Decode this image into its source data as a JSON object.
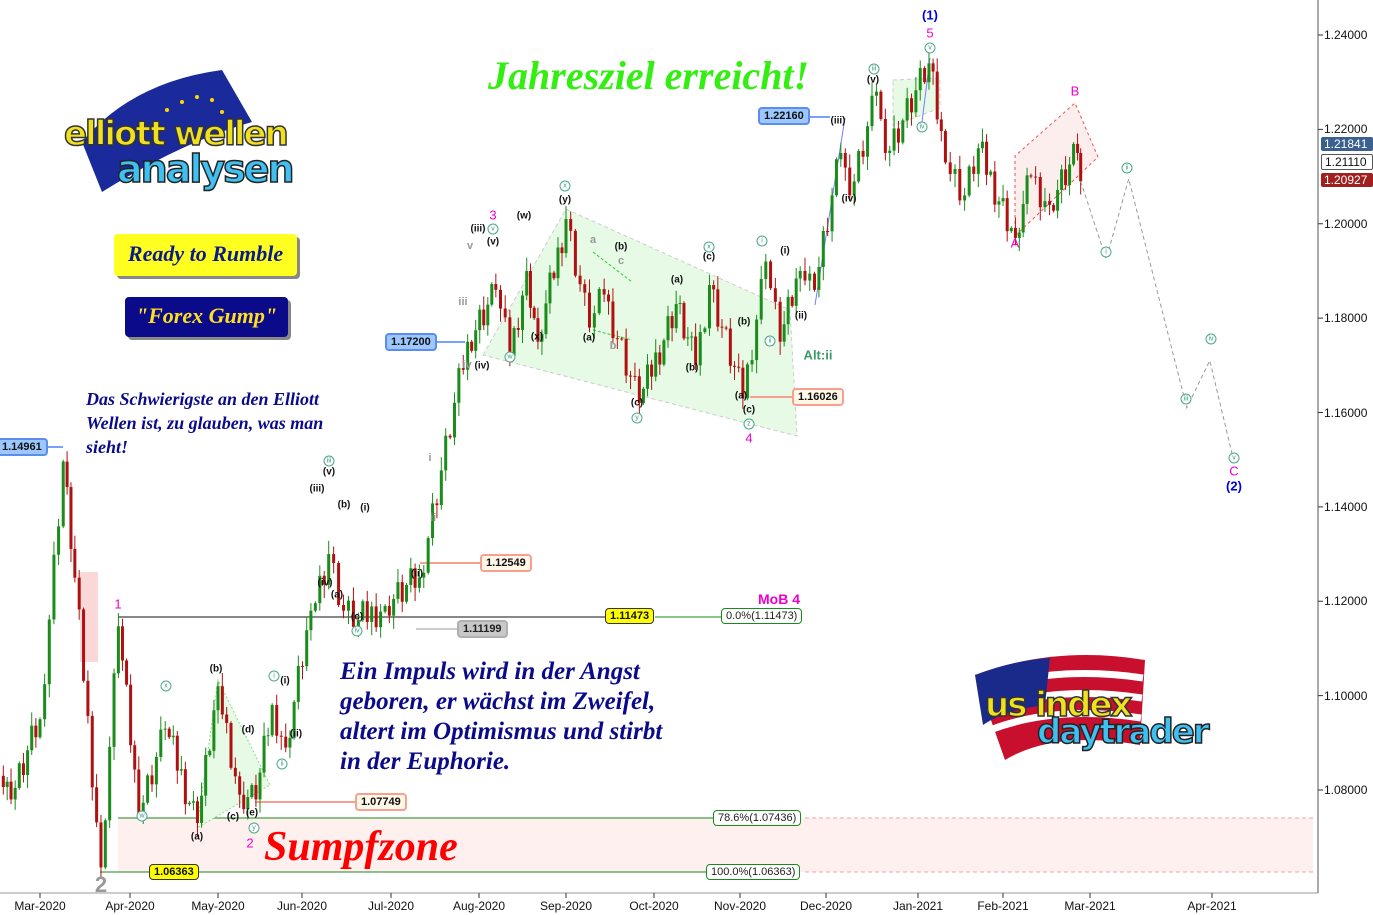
{
  "headline": "Jahresziel erreicht!",
  "badges": {
    "ready": "Ready to Rumble",
    "gump": "\"Forex Gump\""
  },
  "quote_top": [
    "Das Schwierigste an den Elliott",
    "Wellen ist, zu glauben, was man",
    "sieht!"
  ],
  "quote_main": [
    "Ein Impuls wird in der Angst",
    "geboren, er wächst im Zweifel,",
    "altert im Optimismus und stirbt",
    "in der Euphorie."
  ],
  "zone_label": "Sumpfzone",
  "logos": {
    "top_left": [
      "elliott wellen",
      "analysen"
    ],
    "bottom_right": [
      "us index",
      "daytrader"
    ]
  },
  "colors": {
    "up": "#1a8c1a",
    "down": "#b01010",
    "headline": "#33ee11",
    "wave_major": "#ee00cc",
    "wave_cycle": "#0000dd",
    "zone": "#fff0f0",
    "channel": "#e6fae6"
  },
  "chart_data": {
    "type": "candlestick",
    "yaxis": {
      "range": [
        1.0595,
        1.2465
      ],
      "ticks": [
        "1.24000",
        "1.22000",
        "1.20000",
        "1.18000",
        "1.16000",
        "1.14000",
        "1.12000",
        "1.10000",
        "1.08000"
      ],
      "side": "right"
    },
    "xaxis": {
      "ticks": [
        "Mar-2020",
        "Apr-2020",
        "May-2020",
        "Jun-2020",
        "Jul-2020",
        "Aug-2020",
        "Sep-2020",
        "Oct-2020",
        "Nov-2020",
        "Dec-2020",
        "Jan-2021",
        "Feb-2021",
        "Mar-2021",
        "Apr-2021"
      ]
    },
    "price_path": [
      [
        "2020-02-16",
        1.083
      ],
      [
        "2020-02-20",
        1.078
      ],
      [
        "2020-03-01",
        1.095
      ],
      [
        "2020-03-09",
        1.1496
      ],
      [
        "2020-03-13",
        1.125
      ],
      [
        "2020-03-22",
        1.0636
      ],
      [
        "2020-03-28",
        1.1147
      ],
      [
        "2020-04-04",
        1.075
      ],
      [
        "2020-04-13",
        1.093
      ],
      [
        "2020-04-24",
        1.073
      ],
      [
        "2020-05-01",
        1.102
      ],
      [
        "2020-05-09",
        1.079
      ],
      [
        "2020-05-15",
        1.078
      ],
      [
        "2020-05-21",
        1.098
      ],
      [
        "2020-05-26",
        1.089
      ],
      [
        "2020-06-04",
        1.118
      ],
      [
        "2020-06-10",
        1.13
      ],
      [
        "2020-06-15",
        1.118
      ],
      [
        "2020-06-20",
        1.116
      ],
      [
        "2020-06-29",
        1.119
      ],
      [
        "2020-07-11",
        1.125
      ],
      [
        "2020-07-28",
        1.175
      ],
      [
        "2020-08-07",
        1.186
      ],
      [
        "2020-08-12",
        1.172
      ],
      [
        "2020-08-18",
        1.19
      ],
      [
        "2020-08-22",
        1.175
      ],
      [
        "2020-09-01",
        1.201
      ],
      [
        "2020-09-09",
        1.178
      ],
      [
        "2020-09-14",
        1.185
      ],
      [
        "2020-09-26",
        1.162
      ],
      [
        "2020-10-09",
        1.183
      ],
      [
        "2020-10-16",
        1.17
      ],
      [
        "2020-10-21",
        1.187
      ],
      [
        "2020-11-02",
        1.163
      ],
      [
        "2020-11-10",
        1.192
      ],
      [
        "2020-11-15",
        1.175
      ],
      [
        "2020-11-22",
        1.19
      ],
      [
        "2020-11-27",
        1.186
      ],
      [
        "2020-12-06",
        1.215
      ],
      [
        "2020-12-09",
        1.206
      ],
      [
        "2020-12-18",
        1.228
      ],
      [
        "2020-12-21",
        1.215
      ],
      [
        "2021-01-05",
        1.234
      ],
      [
        "2021-01-11",
        1.213
      ],
      [
        "2021-01-18",
        1.206
      ],
      [
        "2021-01-23",
        1.216
      ],
      [
        "2021-02-05",
        1.197
      ],
      [
        "2021-02-10",
        1.21
      ],
      [
        "2021-02-16",
        1.204
      ],
      [
        "2021-02-25",
        1.215
      ],
      [
        "2021-02-26",
        1.209
      ]
    ],
    "projection": [
      [
        "2021-02-26",
        1.209
      ],
      [
        "2021-03-06",
        1.1925
      ],
      [
        "2021-03-13",
        1.2095
      ],
      [
        "2021-03-31",
        1.161
      ],
      [
        "2021-04-07",
        1.171
      ],
      [
        "2021-04-14",
        1.1505
      ]
    ],
    "axis_tags": [
      {
        "value": "1.21841",
        "style": "blue"
      },
      {
        "value": "1.21110",
        "style": "white"
      },
      {
        "value": "1.20927",
        "style": "red"
      }
    ],
    "price_tags": [
      "1.14961",
      "1.17200",
      "1.22160",
      "1.16026",
      "1.12549",
      "1.11199",
      "1.11473",
      "1.07749",
      "1.06363"
    ],
    "fib_levels": [
      "0.0%(1.11473)",
      "78.6%(1.07436)",
      "100.0%(1.06363)"
    ],
    "fib_title": "MoB 4",
    "alt_label": "Alt:ii",
    "wave_labels": {
      "black": [
        "(y)",
        "(w)",
        "(iii)",
        "(v)",
        "(x)",
        "(a)",
        "(b)",
        "(c)",
        "(a)",
        "(b)",
        "(c)",
        "(b)",
        "(a)",
        "(c)",
        "(i)",
        "(ii)",
        "(iii)",
        "(iv)",
        "(v)",
        "(iv)",
        "(iii)",
        "(v)",
        "(b)",
        "(i)",
        "(iv)",
        "(a)",
        "(c)",
        "(ii)",
        "(b)",
        "(d)",
        "(i)",
        "(ii)",
        "(a)",
        "(c)",
        "(e)"
      ],
      "grey": [
        "a",
        "c",
        "b",
        "v",
        "iii",
        "iv",
        "i",
        "ii",
        "2"
      ],
      "circled": [
        "x",
        "v",
        "w",
        "y",
        "x",
        "i",
        "ii",
        "z",
        "iii",
        "iv",
        "v",
        "iii",
        "iv",
        "x",
        "w",
        "y",
        "i",
        "ii",
        "i",
        "ii",
        "iii",
        "iv",
        "v"
      ],
      "major": [
        "3",
        "1",
        "4",
        "5",
        "B",
        "A",
        "C",
        "2"
      ],
      "cycle": [
        "(1)",
        "(2)"
      ]
    }
  }
}
